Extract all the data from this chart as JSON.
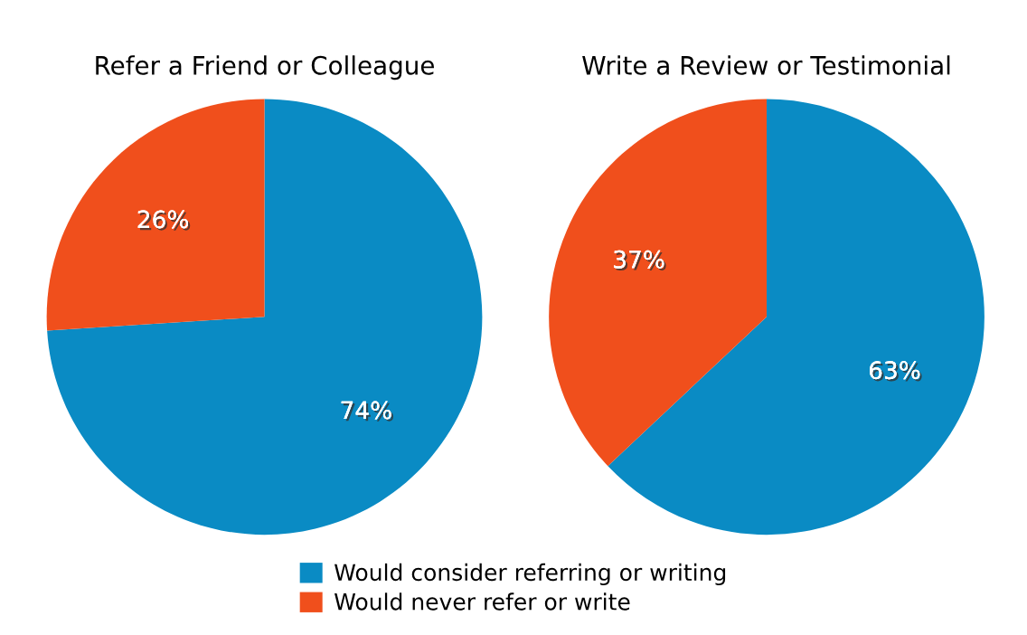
{
  "chart_data": [
    {
      "type": "pie",
      "title": "Refer a Friend or Colleague",
      "categories": [
        "Would consider referring or writing",
        "Would never refer or write"
      ],
      "values": [
        74,
        26
      ],
      "colors": [
        "#0a8bc4",
        "#f04f1c"
      ],
      "value_labels": [
        "74%",
        "26%"
      ],
      "legend": "bottom"
    },
    {
      "type": "pie",
      "title": "Write a Review or Testimonial",
      "categories": [
        null,
        null
      ],
      "values": [
        63,
        37
      ],
      "colors": [
        "#0a8bc4",
        "#f04f1c"
      ],
      "value_labels": [
        "63%",
        "37%"
      ]
    }
  ]
}
